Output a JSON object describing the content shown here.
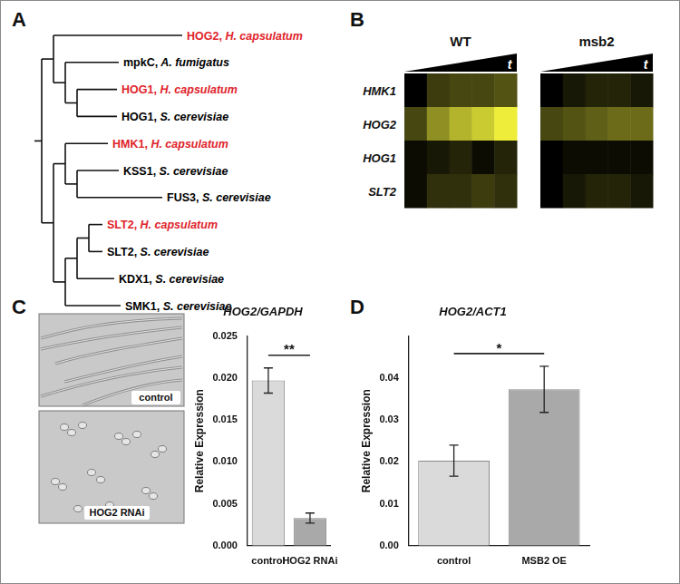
{
  "tree": {
    "letter": "A",
    "root": {
      "children": [
        {
          "children": [
            {
              "label": "HOG2, H. capsulatum",
              "color": "#e0242b"
            },
            {
              "children": [
                {
                  "label": "mpkC, A. fumigatus",
                  "color": "#000000"
                },
                {
                  "children": [
                    {
                      "label": "HOG1, H. capsulatum",
                      "color": "#e0242b"
                    },
                    {
                      "label": "HOG1, S. cerevisiae",
                      "color": "#000000"
                    }
                  ]
                }
              ]
            }
          ]
        },
        {
          "children": [
            {
              "children": [
                {
                  "label": "HMK1, H. capsulatum",
                  "color": "#e0242b"
                },
                {
                  "children": [
                    {
                      "label": "KSS1, S. cerevisiae",
                      "color": "#000000"
                    },
                    {
                      "label": "FUS3, S. cerevisiae",
                      "color": "#000000"
                    }
                  ]
                }
              ]
            },
            {
              "children": [
                {
                  "children": [
                    {
                      "children": [
                        {
                          "label": "SLT2, H. capsulatum",
                          "color": "#e0242b"
                        },
                        {
                          "label": "SLT2, S. cerevisiae",
                          "color": "#000000"
                        }
                      ]
                    },
                    {
                      "label": "KDX1, S. cerevisiae",
                      "color": "#000000"
                    }
                  ]
                },
                {
                  "label": "SMK1, S. cerevisiae",
                  "color": "#000000"
                }
              ]
            }
          ]
        }
      ]
    }
  },
  "heatmap": {
    "letter": "B",
    "axis_label": "t",
    "row_labels": [
      "HMK1",
      "HOG2",
      "HOG1",
      "SLT2"
    ],
    "colormap": [
      "#000000",
      "#eeee3a"
    ],
    "color_range": [
      0,
      1
    ],
    "groups": [
      {
        "label": "WT",
        "cells": [
          [
            0.0,
            0.25,
            0.3,
            0.3,
            0.35
          ],
          [
            0.3,
            0.6,
            0.75,
            0.85,
            1.0
          ],
          [
            0.05,
            0.1,
            0.15,
            0.05,
            0.15
          ],
          [
            0.05,
            0.2,
            0.2,
            0.25,
            0.2
          ]
        ]
      },
      {
        "label": "msb2",
        "cells": [
          [
            0.0,
            0.1,
            0.15,
            0.15,
            0.1
          ],
          [
            0.3,
            0.35,
            0.4,
            0.45,
            0.45
          ],
          [
            0.0,
            0.05,
            0.05,
            0.05,
            0.05
          ],
          [
            0.0,
            0.1,
            0.15,
            0.15,
            0.1
          ]
        ]
      }
    ]
  },
  "images": {
    "letter": "C",
    "labels": [
      "control",
      "HOG2 RNAi"
    ]
  },
  "chart_data": [
    {
      "type": "bar",
      "title": "HOG2/GAPDH",
      "y_label": "Relative Expression",
      "categories": [
        "control",
        "HOG2 RNAi"
      ],
      "values": [
        0.0197,
        0.0033
      ],
      "errors": [
        0.0015,
        0.0006
      ],
      "colors": [
        "#dadada",
        "#a9a9a9"
      ],
      "ylim": [
        0,
        0.025
      ],
      "yticks": [
        {
          "value": 0,
          "label": "0.000"
        },
        0.005,
        {
          "value": 0.01,
          "label": "0.010"
        },
        0.015,
        {
          "value": 0.02,
          "label": "0.020"
        },
        0.025
      ],
      "significance": {
        "label": "**",
        "between": [
          "control",
          "HOG2 RNAi"
        ]
      }
    },
    {
      "letter": "D",
      "type": "bar",
      "title": "HOG2/ACT1",
      "y_label": "Relative Expression",
      "categories": [
        "control",
        "MSB2 OE"
      ],
      "values": [
        0.0203,
        0.0373
      ],
      "errors": [
        0.0037,
        0.0055
      ],
      "colors": [
        "#dadada",
        "#a9a9a9"
      ],
      "ylim": [
        0,
        0.05
      ],
      "yticks": [
        {
          "value": 0,
          "label": "0.00"
        },
        0.01,
        0.02,
        0.03,
        0.04
      ],
      "significance": {
        "label": "*",
        "between": [
          "control",
          "MSB2 OE"
        ]
      }
    }
  ]
}
